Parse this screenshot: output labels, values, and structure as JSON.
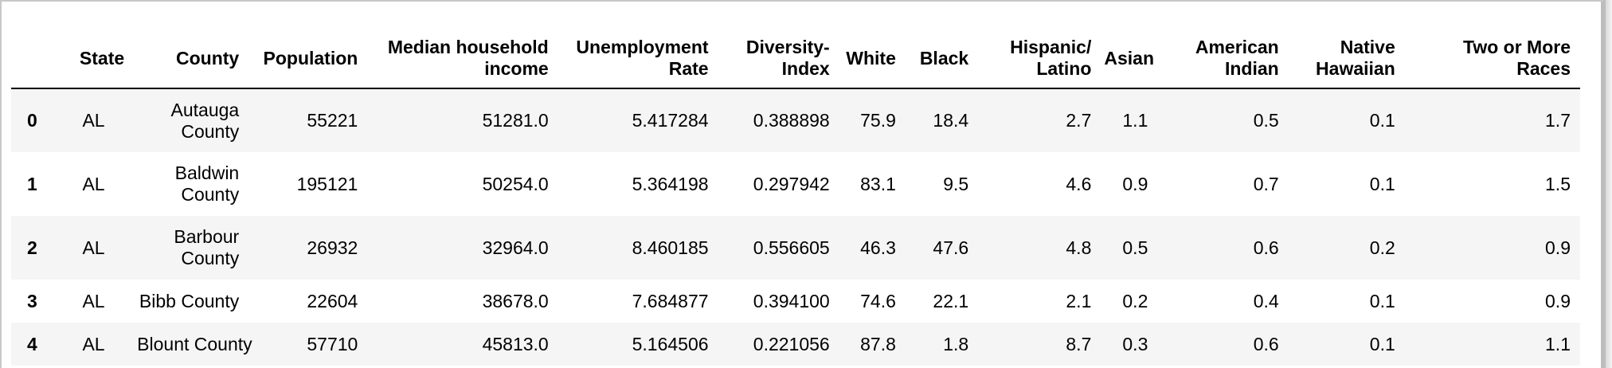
{
  "table": {
    "columns": [
      "",
      "State",
      "County",
      "Population",
      "Median household income",
      "Unemployment Rate",
      "Diversity-Index",
      "White",
      "Black",
      "Hispanic/ Latino",
      "Asian",
      "American Indian",
      "Native Hawaiian",
      "Two or More Races"
    ],
    "rows": [
      {
        "index": "0",
        "state": "AL",
        "county": "Autauga County",
        "population": "55221",
        "income": "51281.0",
        "unemployment": "5.417284",
        "diversity": "0.388898",
        "white": "75.9",
        "black": "18.4",
        "hispanic": "2.7",
        "asian": "1.1",
        "american_indian": "0.5",
        "native_hawaiian": "0.1",
        "two_or_more": "1.7"
      },
      {
        "index": "1",
        "state": "AL",
        "county": "Baldwin County",
        "population": "195121",
        "income": "50254.0",
        "unemployment": "5.364198",
        "diversity": "0.297942",
        "white": "83.1",
        "black": "9.5",
        "hispanic": "4.6",
        "asian": "0.9",
        "american_indian": "0.7",
        "native_hawaiian": "0.1",
        "two_or_more": "1.5"
      },
      {
        "index": "2",
        "state": "AL",
        "county": "Barbour County",
        "population": "26932",
        "income": "32964.0",
        "unemployment": "8.460185",
        "diversity": "0.556605",
        "white": "46.3",
        "black": "47.6",
        "hispanic": "4.8",
        "asian": "0.5",
        "american_indian": "0.6",
        "native_hawaiian": "0.2",
        "two_or_more": "0.9"
      },
      {
        "index": "3",
        "state": "AL",
        "county": "Bibb County",
        "population": "22604",
        "income": "38678.0",
        "unemployment": "7.684877",
        "diversity": "0.394100",
        "white": "74.6",
        "black": "22.1",
        "hispanic": "2.1",
        "asian": "0.2",
        "american_indian": "0.4",
        "native_hawaiian": "0.1",
        "two_or_more": "0.9"
      },
      {
        "index": "4",
        "state": "AL",
        "county": "Blount County",
        "population": "57710",
        "income": "45813.0",
        "unemployment": "5.164506",
        "diversity": "0.221056",
        "white": "87.8",
        "black": "1.8",
        "hispanic": "8.7",
        "asian": "0.3",
        "american_indian": "0.6",
        "native_hawaiian": "0.1",
        "two_or_more": "1.1"
      }
    ]
  }
}
